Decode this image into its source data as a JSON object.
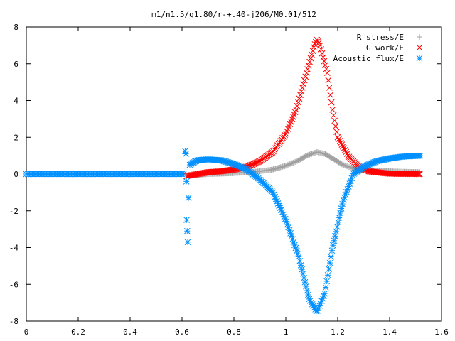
{
  "chart_data": {
    "type": "scatter",
    "title": "m1/n1.5/q1.80/r-+.40-j206/M0.01/512",
    "xlabel": "",
    "ylabel": "",
    "xlim": [
      0,
      1.6
    ],
    "ylim": [
      -8,
      8
    ],
    "x_ticks": [
      {
        "value": 0,
        "label": "0"
      },
      {
        "value": 0.2,
        "label": "0.2"
      },
      {
        "value": 0.4,
        "label": "0.4"
      },
      {
        "value": 0.6,
        "label": "0.6"
      },
      {
        "value": 0.8,
        "label": "0.8"
      },
      {
        "value": 1.0,
        "label": "1"
      },
      {
        "value": 1.2,
        "label": "1.2"
      },
      {
        "value": 1.4,
        "label": "1.4"
      },
      {
        "value": 1.6,
        "label": "1.6"
      }
    ],
    "y_ticks": [
      {
        "value": 8,
        "label": "8"
      },
      {
        "value": 6,
        "label": "6"
      },
      {
        "value": 4,
        "label": "4"
      },
      {
        "value": 2,
        "label": "2"
      },
      {
        "value": 0,
        "label": "0"
      },
      {
        "value": -2,
        "label": "-2"
      },
      {
        "value": -4,
        "label": "-4"
      },
      {
        "value": -6,
        "label": "-6"
      },
      {
        "value": -8,
        "label": "-8"
      }
    ],
    "grid": false,
    "legend_position": "top-right",
    "series": [
      {
        "name": "R stress/E",
        "marker": "plus",
        "color": "#a0a0a0",
        "points": [
          [
            0.62,
            -0.08
          ],
          [
            0.7,
            0.0
          ],
          [
            0.8,
            0.05
          ],
          [
            0.9,
            0.15
          ],
          [
            0.95,
            0.25
          ],
          [
            1.0,
            0.45
          ],
          [
            1.05,
            0.75
          ],
          [
            1.08,
            1.0
          ],
          [
            1.12,
            1.2
          ],
          [
            1.15,
            1.1
          ],
          [
            1.18,
            0.85
          ],
          [
            1.22,
            0.5
          ],
          [
            1.26,
            0.3
          ],
          [
            1.3,
            0.2
          ],
          [
            1.4,
            0.15
          ],
          [
            1.52,
            0.1
          ]
        ]
      },
      {
        "name": "G work/E",
        "marker": "cross",
        "color": "#ff0000",
        "points": [
          [
            0.62,
            -0.1
          ],
          [
            0.66,
            0.0
          ],
          [
            0.7,
            0.1
          ],
          [
            0.75,
            0.15
          ],
          [
            0.8,
            0.25
          ],
          [
            0.85,
            0.4
          ],
          [
            0.9,
            0.7
          ],
          [
            0.95,
            1.2
          ],
          [
            1.0,
            2.2
          ],
          [
            1.04,
            3.5
          ],
          [
            1.08,
            5.5
          ],
          [
            1.11,
            7.0
          ],
          [
            1.12,
            7.3
          ],
          [
            1.13,
            7.1
          ],
          [
            1.16,
            5.5
          ],
          [
            1.18,
            3.5
          ],
          [
            1.2,
            2.0
          ],
          [
            1.24,
            1.0
          ],
          [
            1.28,
            0.4
          ],
          [
            1.32,
            0.15
          ],
          [
            1.4,
            0.02
          ],
          [
            1.52,
            0.0
          ]
        ]
      },
      {
        "name": "Acoustic flux/E",
        "marker": "star",
        "color": "#0090ff",
        "points": [
          [
            0.612,
            1.25
          ],
          [
            0.615,
            1.1
          ],
          [
            0.617,
            -0.4
          ],
          [
            0.618,
            -2.5
          ],
          [
            0.62,
            -3.1
          ],
          [
            0.622,
            -3.7
          ],
          [
            0.625,
            -1.3
          ],
          [
            0.63,
            0.5
          ],
          [
            0.64,
            0.6
          ],
          [
            0.66,
            0.75
          ],
          [
            0.7,
            0.8
          ],
          [
            0.75,
            0.75
          ],
          [
            0.8,
            0.55
          ],
          [
            0.85,
            0.25
          ],
          [
            0.9,
            -0.3
          ],
          [
            0.95,
            -1.0
          ],
          [
            1.0,
            -2.5
          ],
          [
            1.05,
            -4.5
          ],
          [
            1.09,
            -6.8
          ],
          [
            1.12,
            -7.5
          ],
          [
            1.15,
            -6.5
          ],
          [
            1.18,
            -4.0
          ],
          [
            1.22,
            -1.5
          ],
          [
            1.26,
            0.0
          ],
          [
            1.3,
            0.4
          ],
          [
            1.35,
            0.7
          ],
          [
            1.4,
            0.85
          ],
          [
            1.45,
            0.95
          ],
          [
            1.52,
            1.0
          ]
        ]
      }
    ]
  }
}
